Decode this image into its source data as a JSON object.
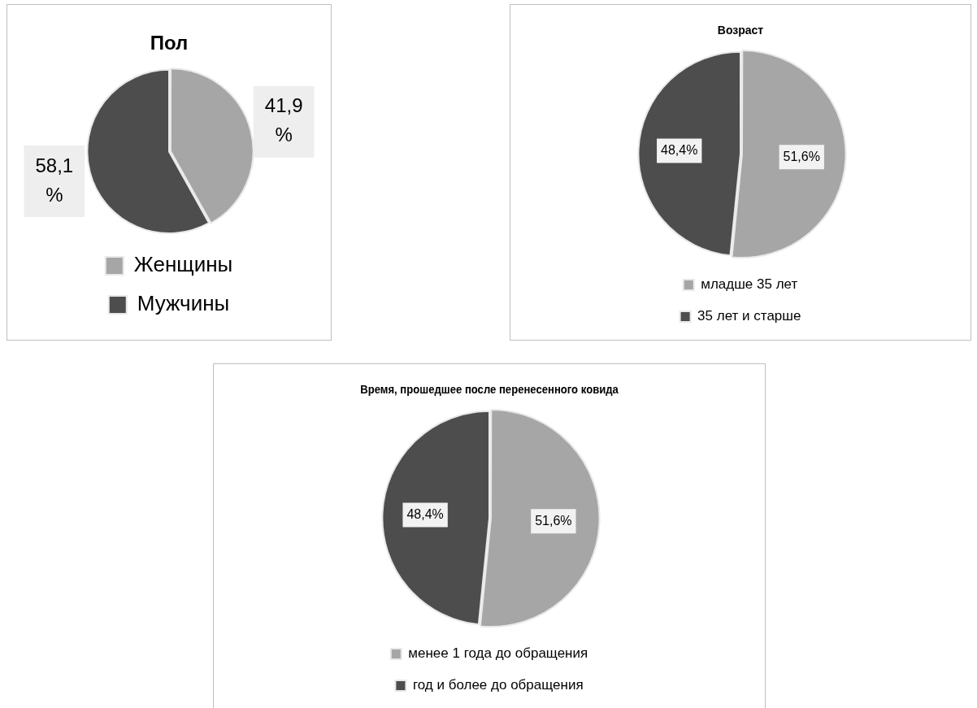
{
  "chart_data": [
    {
      "type": "pie",
      "title": "Пол",
      "categories": [
        "Женщины",
        "Мужчины"
      ],
      "values": [
        41.9,
        58.1
      ],
      "colors": [
        "#a6a6a6",
        "#4d4d4d"
      ],
      "value_labels": [
        "41,9 %",
        "58,1 %"
      ],
      "legend": "bottom"
    },
    {
      "type": "pie",
      "title": "Возраст",
      "categories": [
        "младше 35 лет",
        "35 лет и старше"
      ],
      "values": [
        51.6,
        48.4
      ],
      "colors": [
        "#a6a6a6",
        "#4d4d4d"
      ],
      "value_labels": [
        "51,6%",
        "48,4%"
      ],
      "legend": "bottom"
    },
    {
      "type": "pie",
      "title": "Время, прошедшее после перенесенного ковида",
      "categories": [
        "менее 1 года до обращения",
        "год и более до обращения"
      ],
      "values": [
        51.6,
        48.4
      ],
      "colors": [
        "#a6a6a6",
        "#4d4d4d"
      ],
      "value_labels": [
        "51,6%",
        "48,4%"
      ],
      "legend": "bottom"
    }
  ]
}
